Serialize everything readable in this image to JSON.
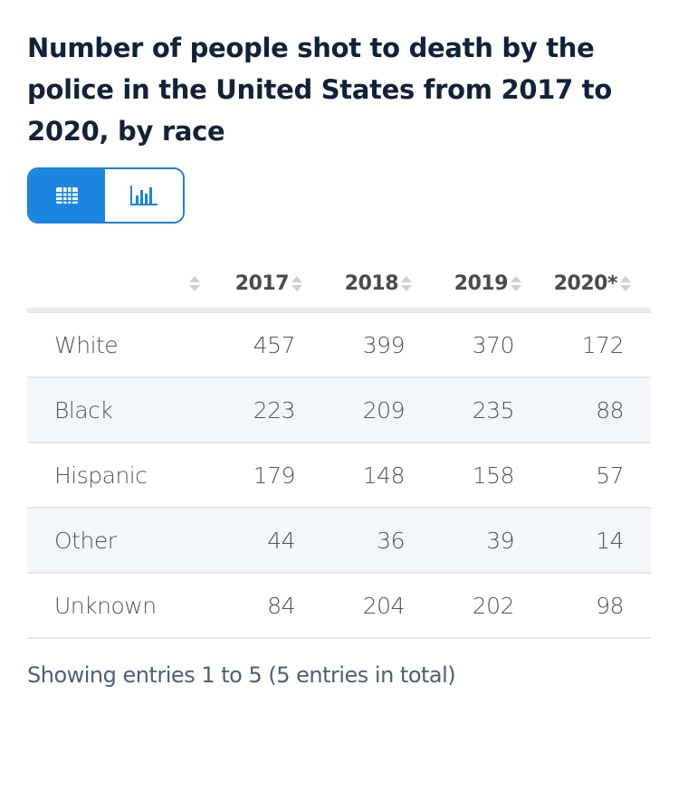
{
  "title": "Number of people shot to death by the police in the United States from 2017 to 2020, by race",
  "view_toggle": {
    "active": "table",
    "options": [
      {
        "name": "table-view",
        "icon": "table-icon"
      },
      {
        "name": "chart-view",
        "icon": "bar-chart-icon"
      }
    ],
    "active_color": "#1a86e0"
  },
  "table": {
    "columns": [
      "",
      "2017",
      "2018",
      "2019",
      "2020*"
    ],
    "rows": [
      {
        "label": "White",
        "values": [
          "457",
          "399",
          "370",
          "172"
        ]
      },
      {
        "label": "Black",
        "values": [
          "223",
          "209",
          "235",
          "88"
        ]
      },
      {
        "label": "Hispanic",
        "values": [
          "179",
          "148",
          "158",
          "57"
        ]
      },
      {
        "label": "Other",
        "values": [
          "44",
          "36",
          "39",
          "14"
        ]
      },
      {
        "label": "Unknown",
        "values": [
          "84",
          "204",
          "202",
          "98"
        ]
      }
    ]
  },
  "footer": "Showing entries 1 to 5 (5 entries in total)"
}
